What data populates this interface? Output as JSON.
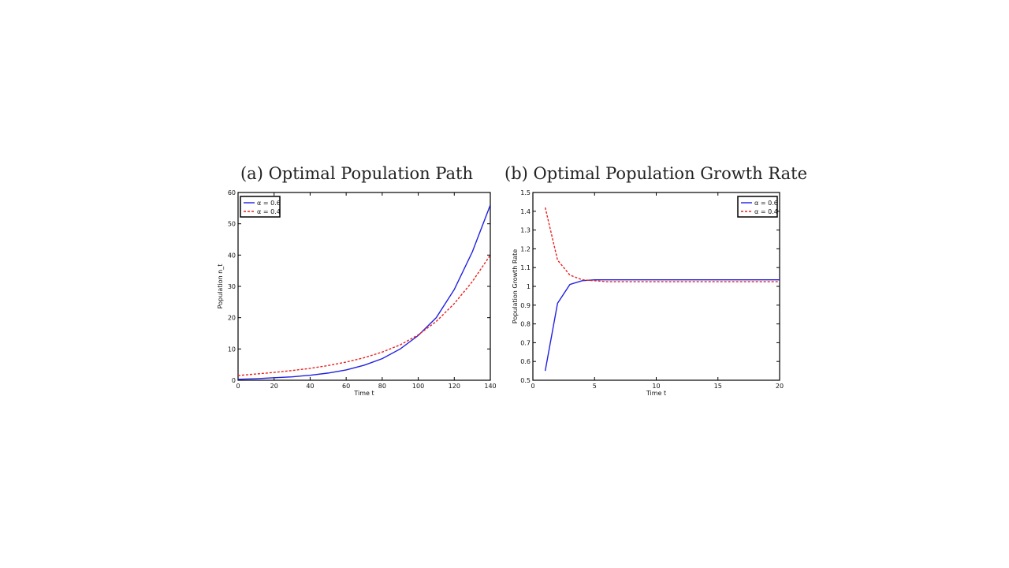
{
  "colors": {
    "series_a": "#2020e0",
    "series_b": "#e82020"
  },
  "chart_data": [
    {
      "type": "line",
      "title": "(a) Optimal Population Path",
      "xlabel": "Time t",
      "ylabel": "Population n_t",
      "xlim": [
        0,
        140
      ],
      "ylim": [
        0,
        60
      ],
      "xticks": [
        0,
        20,
        40,
        60,
        80,
        100,
        120,
        140
      ],
      "yticks": [
        0,
        10,
        20,
        30,
        40,
        50,
        60
      ],
      "grid": false,
      "legend_position": "top-left",
      "series": [
        {
          "name": "α = 0.6",
          "style": "solid",
          "color": "#2020e0",
          "x": [
            0,
            10,
            20,
            30,
            40,
            50,
            60,
            70,
            80,
            90,
            100,
            110,
            120,
            130,
            140
          ],
          "y": [
            0.3,
            0.5,
            0.8,
            1.1,
            1.6,
            2.3,
            3.3,
            4.8,
            6.9,
            10.0,
            14.3,
            20.0,
            29.0,
            41.0,
            56.0
          ]
        },
        {
          "name": "α = 0.4",
          "style": "dashed",
          "color": "#e82020",
          "x": [
            0,
            10,
            20,
            30,
            40,
            50,
            60,
            70,
            80,
            90,
            100,
            110,
            120,
            130,
            140
          ],
          "y": [
            1.5,
            2.0,
            2.5,
            3.1,
            3.8,
            4.7,
            5.8,
            7.2,
            9.0,
            11.3,
            14.5,
            18.8,
            24.5,
            31.5,
            40.0
          ]
        }
      ]
    },
    {
      "type": "line",
      "title": "(b) Optimal Population Growth Rate",
      "xlabel": "Time t",
      "ylabel": "Population Growth Rate",
      "xlim": [
        0,
        20
      ],
      "ylim": [
        0.5,
        1.5
      ],
      "xticks": [
        0,
        5,
        10,
        15,
        20
      ],
      "yticks": [
        0.5,
        0.6,
        0.7,
        0.8,
        0.9,
        1,
        1.1,
        1.2,
        1.3,
        1.4,
        1.5
      ],
      "grid": false,
      "legend_position": "top-right",
      "series": [
        {
          "name": "α = 0.6",
          "style": "solid",
          "color": "#2020e0",
          "x": [
            1,
            2,
            3,
            4,
            5,
            6,
            7,
            8,
            9,
            10,
            11,
            12,
            13,
            14,
            15,
            16,
            17,
            18,
            19,
            20
          ],
          "y": [
            0.55,
            0.91,
            1.01,
            1.03,
            1.035,
            1.035,
            1.035,
            1.035,
            1.035,
            1.035,
            1.035,
            1.035,
            1.035,
            1.035,
            1.035,
            1.035,
            1.035,
            1.035,
            1.035,
            1.035
          ]
        },
        {
          "name": "α = 0.4",
          "style": "dashed",
          "color": "#e82020",
          "x": [
            1,
            2,
            3,
            4,
            5,
            6,
            7,
            8,
            9,
            10,
            11,
            12,
            13,
            14,
            15,
            16,
            17,
            18,
            19,
            20
          ],
          "y": [
            1.42,
            1.14,
            1.06,
            1.035,
            1.03,
            1.025,
            1.025,
            1.025,
            1.025,
            1.025,
            1.025,
            1.025,
            1.025,
            1.025,
            1.025,
            1.025,
            1.025,
            1.025,
            1.025,
            1.025
          ]
        }
      ]
    }
  ]
}
